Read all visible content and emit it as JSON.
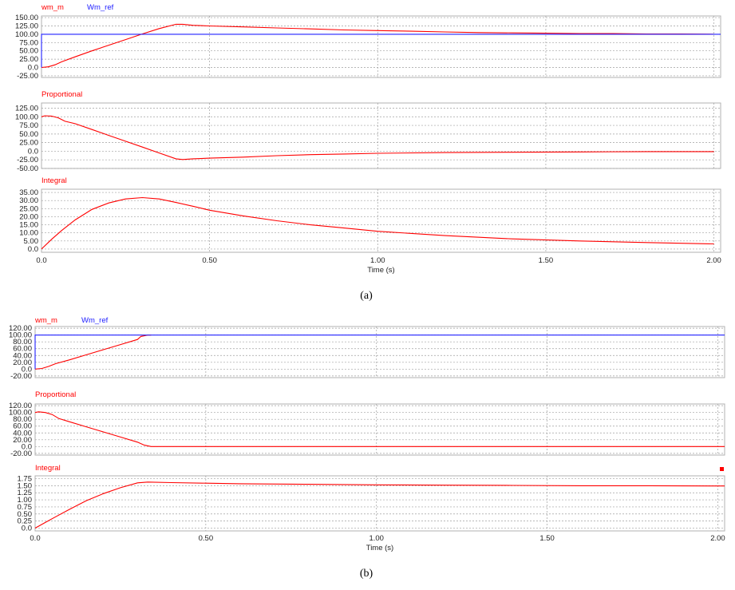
{
  "figure": {
    "captions": [
      "(a)",
      "(b)"
    ]
  },
  "colors": {
    "red": "#ff0000",
    "blue": "#2020ff",
    "grid": "#a0a0a0",
    "text": "#222222",
    "caption": "#000000"
  },
  "chart_data": [
    {
      "type": "line",
      "panel": "a",
      "xlabel": "Time (s)",
      "xlim": [
        0,
        2.02
      ],
      "xticks": [
        0,
        0.5,
        1.0,
        1.5,
        2.0
      ],
      "xtick_labels": [
        "0.0",
        "0.50",
        "1.00",
        "1.50",
        "2.00"
      ],
      "grid": true,
      "subplots": [
        {
          "legend": [
            "wm_m",
            "Wm_ref"
          ],
          "ylim": [
            -30,
            155
          ],
          "yticks": [
            -25,
            0,
            25,
            50,
            75,
            100,
            125,
            150
          ],
          "ytick_labels": [
            "-25.00",
            "0.0",
            "25.00",
            "50.00",
            "75.00",
            "100.00",
            "125.00",
            "150.00"
          ],
          "series": [
            {
              "name": "wm_m",
              "color": "red",
              "x": [
                0,
                0.02,
                0.04,
                0.06,
                0.1,
                0.15,
                0.2,
                0.25,
                0.3,
                0.35,
                0.4,
                0.42,
                0.45,
                0.5,
                0.6,
                0.7,
                0.8,
                0.9,
                1.0,
                1.1,
                1.2,
                1.3,
                1.4,
                1.5,
                1.6,
                1.7,
                1.8,
                1.9,
                2.0
              ],
              "y": [
                0,
                2,
                8,
                17,
                32,
                50,
                67,
                84,
                101,
                117,
                130,
                130,
                127,
                125,
                122,
                119,
                116,
                113,
                111,
                109,
                107,
                105,
                104,
                103,
                102,
                102,
                101,
                101,
                100
              ]
            },
            {
              "name": "Wm_ref",
              "color": "blue",
              "x": [
                0,
                0,
                2.02
              ],
              "y": [
                0,
                100,
                100
              ]
            }
          ]
        },
        {
          "legend": [
            "Proportional"
          ],
          "ylim": [
            -50,
            140
          ],
          "yticks": [
            -50,
            -25,
            0,
            25,
            50,
            75,
            100,
            125
          ],
          "ytick_labels": [
            "-50.00",
            "-25.00",
            "0.0",
            "25.00",
            "50.00",
            "75.00",
            "100.00",
            "125.00"
          ],
          "series": [
            {
              "name": "Proportional",
              "color": "red",
              "x": [
                0,
                0.01,
                0.03,
                0.05,
                0.07,
                0.1,
                0.15,
                0.2,
                0.25,
                0.3,
                0.35,
                0.4,
                0.42,
                0.45,
                0.5,
                0.6,
                0.7,
                0.8,
                0.9,
                1.0,
                1.2,
                1.4,
                1.6,
                1.8,
                2.0
              ],
              "y": [
                100,
                103,
                102,
                97,
                87,
                80,
                63,
                46,
                29,
                12,
                -5,
                -22,
                -24,
                -22,
                -20,
                -17,
                -13,
                -10,
                -8,
                -6,
                -4,
                -3,
                -2,
                -1,
                -1
              ]
            }
          ]
        },
        {
          "legend": [
            "Integral"
          ],
          "ylim": [
            -2,
            37
          ],
          "yticks": [
            0,
            5,
            10,
            15,
            20,
            25,
            30,
            35
          ],
          "ytick_labels": [
            "0.0",
            "5.00",
            "10.00",
            "15.00",
            "20.00",
            "25.00",
            "30.00",
            "35.00"
          ],
          "series": [
            {
              "name": "Integral",
              "color": "red",
              "x": [
                0,
                0.03,
                0.06,
                0.1,
                0.15,
                0.2,
                0.25,
                0.3,
                0.35,
                0.4,
                0.45,
                0.5,
                0.6,
                0.7,
                0.8,
                0.9,
                1.0,
                1.2,
                1.4,
                1.6,
                1.8,
                2.0
              ],
              "y": [
                0,
                6,
                11.5,
                18,
                24.5,
                28.5,
                31,
                31.8,
                31,
                28.8,
                26.5,
                24,
                20.5,
                17.5,
                15,
                13,
                11,
                8.3,
                6.3,
                5,
                4,
                3.2
              ]
            }
          ]
        }
      ]
    },
    {
      "type": "line",
      "panel": "b",
      "xlabel": "Time (s)",
      "xlim": [
        0,
        2.02
      ],
      "xticks": [
        0,
        0.5,
        1.0,
        1.5,
        2.0
      ],
      "xtick_labels": [
        "0.0",
        "0.50",
        "1.00",
        "1.50",
        "2.00"
      ],
      "grid": true,
      "subplots": [
        {
          "legend": [
            "wm_m",
            "Wm_ref"
          ],
          "ylim": [
            -25,
            125
          ],
          "yticks": [
            -20,
            0,
            20,
            40,
            60,
            80,
            100,
            120
          ],
          "ytick_labels": [
            "-20.00",
            "0.0",
            "20.00",
            "40.00",
            "60.00",
            "80.00",
            "100.00",
            "120.00"
          ],
          "series": [
            {
              "name": "wm_m",
              "color": "red",
              "x": [
                0,
                0.02,
                0.04,
                0.06,
                0.1,
                0.15,
                0.2,
                0.25,
                0.3,
                0.31,
                0.33,
                0.34
              ],
              "y": [
                0,
                2,
                8,
                16,
                27,
                42,
                57,
                72,
                87,
                96,
                100,
                100
              ]
            },
            {
              "name": "Wm_ref",
              "color": "blue",
              "x": [
                0,
                0,
                2.02
              ],
              "y": [
                0,
                100,
                100
              ]
            }
          ]
        },
        {
          "legend": [
            "Proportional"
          ],
          "ylim": [
            -25,
            125
          ],
          "yticks": [
            -20,
            0,
            20,
            40,
            60,
            80,
            100,
            120
          ],
          "ytick_labels": [
            "-20.00",
            "0.0",
            "20.00",
            "40.00",
            "60.00",
            "80.00",
            "100.00",
            "120.00"
          ],
          "series": [
            {
              "name": "Proportional",
              "color": "red",
              "x": [
                0,
                0.01,
                0.03,
                0.05,
                0.07,
                0.1,
                0.15,
                0.2,
                0.25,
                0.3,
                0.32,
                0.34,
                2.02
              ],
              "y": [
                100,
                102,
                100,
                94,
                82,
                73,
                58,
                43,
                28,
                13,
                4,
                0,
                0
              ]
            }
          ]
        },
        {
          "legend": [
            "Integral"
          ],
          "ylim": [
            -0.1,
            1.85
          ],
          "yticks": [
            0,
            0.25,
            0.5,
            0.75,
            1.0,
            1.25,
            1.5,
            1.75
          ],
          "ytick_labels": [
            "0.0",
            "0.25",
            "0.50",
            "0.75",
            "1.00",
            "1.25",
            "1.50",
            "1.75"
          ],
          "series": [
            {
              "name": "Integral",
              "color": "red",
              "x": [
                0,
                0.03,
                0.06,
                0.1,
                0.15,
                0.2,
                0.25,
                0.3,
                0.33,
                0.4,
                0.5,
                0.6,
                0.8,
                1.0,
                1.2,
                1.4,
                1.6,
                1.8,
                2.0,
                2.02
              ],
              "y": [
                0,
                0.2,
                0.4,
                0.66,
                0.97,
                1.22,
                1.43,
                1.6,
                1.63,
                1.61,
                1.59,
                1.57,
                1.55,
                1.53,
                1.52,
                1.51,
                1.5,
                1.5,
                1.49,
                1.49
              ]
            }
          ]
        }
      ]
    }
  ]
}
